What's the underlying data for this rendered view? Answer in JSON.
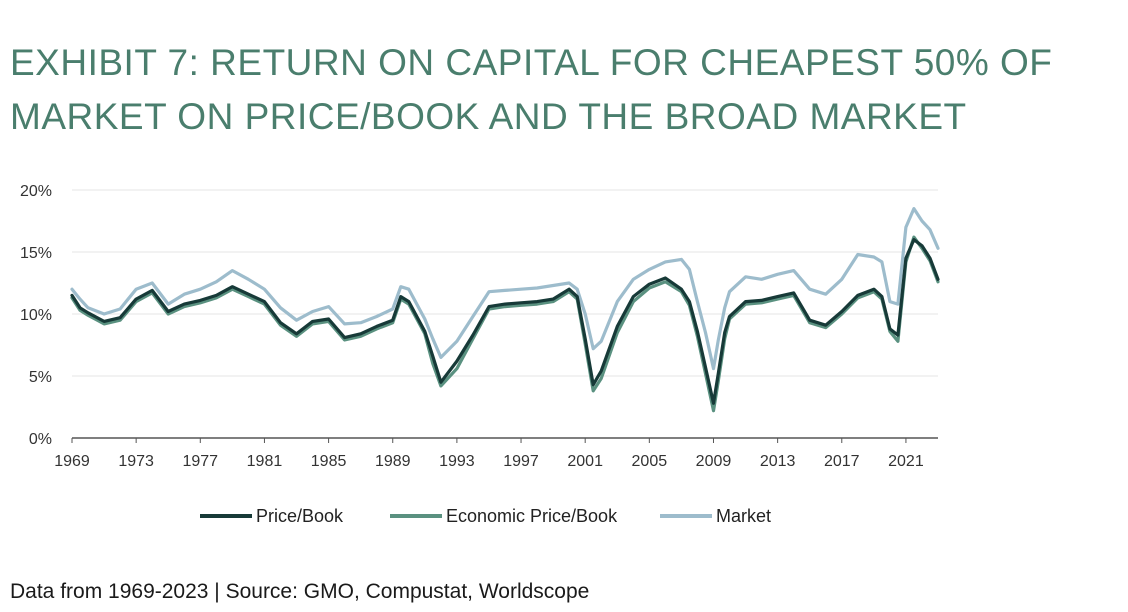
{
  "title": "EXHIBIT 7: RETURN ON CAPITAL FOR CHEAPEST 50% OF MARKET ON PRICE/BOOK AND THE BROAD MARKET",
  "source": "Data from 1969-2023 | Source: GMO, Compustat, Worldscope",
  "colors": {
    "title": "#4a7e6d",
    "price_book": "#173a38",
    "economic_price_book": "#5a9180",
    "market": "#9dbccc",
    "grid": "#e6e6e6",
    "axis": "#555555"
  },
  "chart_data": {
    "type": "line",
    "title": "",
    "xlabel": "",
    "ylabel": "",
    "xlim": [
      1969,
      2023
    ],
    "ylim": [
      0,
      20
    ],
    "x_ticks": [
      1969,
      1973,
      1977,
      1981,
      1985,
      1989,
      1993,
      1997,
      2001,
      2005,
      2009,
      2013,
      2017,
      2021
    ],
    "x_tick_labels": [
      "1969",
      "1973",
      "1977",
      "1981",
      "1985",
      "1989",
      "1993",
      "1997",
      "2001",
      "2005",
      "2009",
      "2013",
      "2017",
      "2021"
    ],
    "y_ticks": [
      0,
      5,
      10,
      15,
      20
    ],
    "y_tick_labels": [
      "0%",
      "5%",
      "10%",
      "15%",
      "20%"
    ],
    "grid": true,
    "legend_position": "bottom",
    "x": [
      1969,
      1969.5,
      1970,
      1971,
      1972,
      1973,
      1974,
      1975,
      1976,
      1977,
      1978,
      1979,
      1980,
      1981,
      1982,
      1983,
      1984,
      1985,
      1986,
      1987,
      1988,
      1989,
      1989.5,
      1990,
      1991,
      1991.5,
      1992,
      1993,
      1994,
      1995,
      1996,
      1997,
      1998,
      1999,
      2000,
      2000.5,
      2001,
      2001.5,
      2002,
      2003,
      2004,
      2005,
      2006,
      2007,
      2007.5,
      2008,
      2008.5,
      2009,
      2009.3,
      2009.7,
      2010,
      2011,
      2012,
      2013,
      2014,
      2015,
      2016,
      2017,
      2018,
      2019,
      2019.5,
      2020,
      2020.5,
      2021,
      2021.5,
      2022,
      2022.5,
      2023
    ],
    "series": [
      {
        "name": "Price/Book",
        "values": [
          11.5,
          10.5,
          10.1,
          9.4,
          9.7,
          11.2,
          11.9,
          10.2,
          10.8,
          11.1,
          11.5,
          12.2,
          11.6,
          11.0,
          9.3,
          8.4,
          9.4,
          9.6,
          8.1,
          8.4,
          9.0,
          9.5,
          11.4,
          11.0,
          8.6,
          6.6,
          4.5,
          6.2,
          8.3,
          10.6,
          10.8,
          10.9,
          11.0,
          11.2,
          12.0,
          11.4,
          8.0,
          4.3,
          5.4,
          9.0,
          11.4,
          12.4,
          12.9,
          12.0,
          11.0,
          8.6,
          5.7,
          2.8,
          5.2,
          8.5,
          9.8,
          11.0,
          11.1,
          11.4,
          11.7,
          9.5,
          9.1,
          10.2,
          11.5,
          12.0,
          11.4,
          8.8,
          8.3,
          14.5,
          16.0,
          15.5,
          14.5,
          12.8
        ]
      },
      {
        "name": "Economic Price/Book",
        "values": [
          11.3,
          10.3,
          9.9,
          9.2,
          9.5,
          11.0,
          11.7,
          10.0,
          10.6,
          10.9,
          11.3,
          12.0,
          11.4,
          10.8,
          9.1,
          8.2,
          9.2,
          9.4,
          7.9,
          8.2,
          8.8,
          9.3,
          11.2,
          10.8,
          8.4,
          6.0,
          4.2,
          5.6,
          8.0,
          10.4,
          10.6,
          10.7,
          10.8,
          11.0,
          11.8,
          11.2,
          7.6,
          3.8,
          4.8,
          8.5,
          11.0,
          12.1,
          12.6,
          11.8,
          10.7,
          8.2,
          5.2,
          2.2,
          4.6,
          8.0,
          9.6,
          10.8,
          10.9,
          11.2,
          11.5,
          9.3,
          8.9,
          10.0,
          11.3,
          11.8,
          11.2,
          8.6,
          7.8,
          14.2,
          16.2,
          15.3,
          14.3,
          12.6
        ]
      },
      {
        "name": "Market",
        "values": [
          12.0,
          11.2,
          10.5,
          10.0,
          10.4,
          12.0,
          12.5,
          10.8,
          11.6,
          12.0,
          12.6,
          13.5,
          12.8,
          12.0,
          10.5,
          9.5,
          10.2,
          10.6,
          9.2,
          9.3,
          9.8,
          10.4,
          12.2,
          12.0,
          9.6,
          8.0,
          6.5,
          7.8,
          9.8,
          11.8,
          11.9,
          12.0,
          12.1,
          12.3,
          12.5,
          12.0,
          10.0,
          7.2,
          7.8,
          11.0,
          12.8,
          13.6,
          14.2,
          14.4,
          13.6,
          11.0,
          8.5,
          5.6,
          7.9,
          10.5,
          11.8,
          13.0,
          12.8,
          13.2,
          13.5,
          12.0,
          11.6,
          12.8,
          14.8,
          14.6,
          14.2,
          11.0,
          10.8,
          17.0,
          18.5,
          17.5,
          16.8,
          15.3
        ]
      }
    ]
  }
}
